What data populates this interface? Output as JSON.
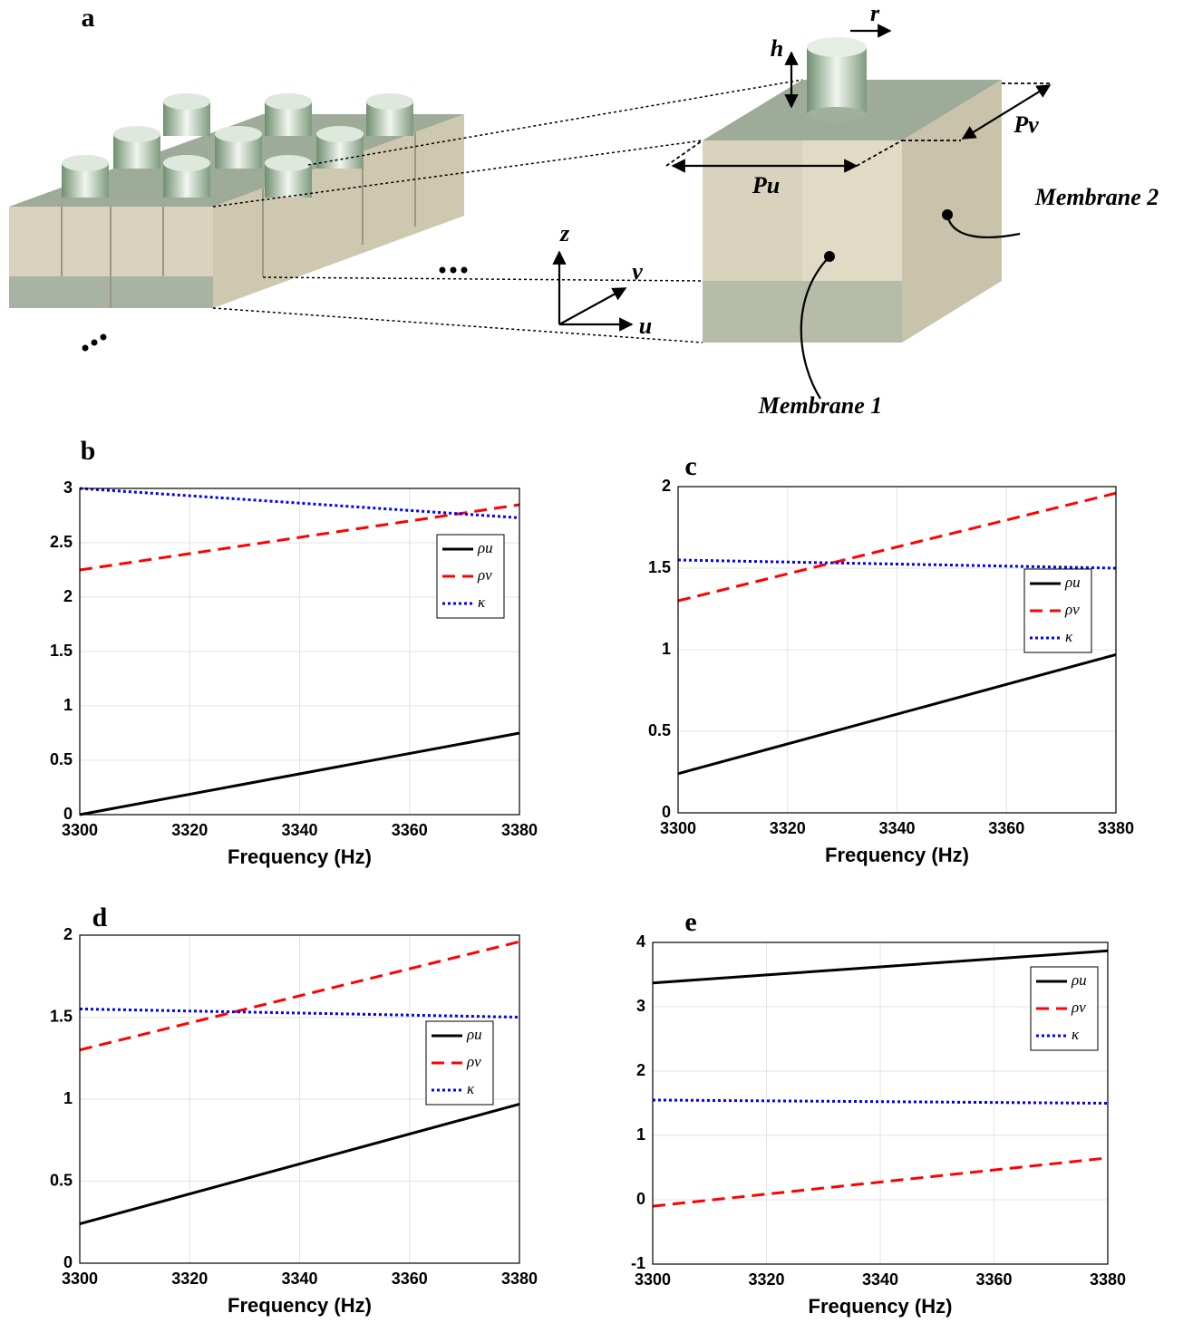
{
  "diagram": {
    "label": "a",
    "r": "r",
    "h": "h",
    "pv": "Pv",
    "pu": "Pu",
    "membrane2": "Membrane 2",
    "membrane1": "Membrane 1",
    "z": "z",
    "v": "v",
    "u": "u"
  },
  "chart_data": [
    {
      "type": "line",
      "label": "b",
      "xlabel": "Frequency (Hz)",
      "x": [
        3300,
        3380
      ],
      "xlim": [
        3300,
        3380
      ],
      "xticks": [
        3300,
        3320,
        3340,
        3360,
        3380
      ],
      "ylim": [
        0,
        3
      ],
      "yticks": [
        0,
        0.5,
        1,
        1.5,
        2,
        2.5,
        3
      ],
      "grid": true,
      "legend": "upper right",
      "series": [
        {
          "name": "ρu",
          "color": "#000000",
          "linestyle": "solid",
          "values": [
            0,
            0.75
          ]
        },
        {
          "name": "ρv",
          "color": "#ff0000",
          "linestyle": "dashed",
          "values": [
            2.25,
            2.85
          ]
        },
        {
          "name": "κ",
          "color": "#0000ff",
          "linestyle": "dotted",
          "values": [
            3.0,
            2.73
          ]
        }
      ]
    },
    {
      "type": "line",
      "label": "c",
      "xlabel": "Frequency (Hz)",
      "x": [
        3300,
        3380
      ],
      "xlim": [
        3300,
        3380
      ],
      "xticks": [
        3300,
        3320,
        3340,
        3360,
        3380
      ],
      "ylim": [
        0,
        2
      ],
      "yticks": [
        0,
        0.5,
        1,
        1.5,
        2
      ],
      "grid": true,
      "legend": "right",
      "series": [
        {
          "name": "ρu",
          "color": "#000000",
          "linestyle": "solid",
          "values": [
            0.24,
            0.97
          ]
        },
        {
          "name": "ρv",
          "color": "#ff0000",
          "linestyle": "dashed",
          "values": [
            1.3,
            1.96
          ]
        },
        {
          "name": "κ",
          "color": "#0000ff",
          "linestyle": "dotted",
          "values": [
            1.55,
            1.5
          ]
        }
      ]
    },
    {
      "type": "line",
      "label": "d",
      "xlabel": "Frequency (Hz)",
      "x": [
        3300,
        3380
      ],
      "xlim": [
        3300,
        3380
      ],
      "xticks": [
        3300,
        3320,
        3340,
        3360,
        3380
      ],
      "ylim": [
        0,
        2
      ],
      "yticks": [
        0,
        0.5,
        1,
        1.5,
        2
      ],
      "grid": true,
      "legend": "right",
      "series": [
        {
          "name": "ρu",
          "color": "#000000",
          "linestyle": "solid",
          "values": [
            0.24,
            0.97
          ]
        },
        {
          "name": "ρv",
          "color": "#ff0000",
          "linestyle": "dashed",
          "values": [
            1.3,
            1.96
          ]
        },
        {
          "name": "κ",
          "color": "#0000ff",
          "linestyle": "dotted",
          "values": [
            1.55,
            1.5
          ]
        }
      ]
    },
    {
      "type": "line",
      "label": "e",
      "xlabel": "Frequency (Hz)",
      "x": [
        3300,
        3380
      ],
      "xlim": [
        3300,
        3380
      ],
      "xticks": [
        3300,
        3320,
        3340,
        3360,
        3380
      ],
      "ylim": [
        -1,
        4
      ],
      "yticks": [
        -1,
        0,
        1,
        2,
        3,
        4
      ],
      "grid": true,
      "legend": "upper right",
      "series": [
        {
          "name": "ρu",
          "color": "#000000",
          "linestyle": "solid",
          "values": [
            3.37,
            3.87
          ]
        },
        {
          "name": "ρv",
          "color": "#ff0000",
          "linestyle": "dashed",
          "values": [
            -0.1,
            0.65
          ]
        },
        {
          "name": "κ",
          "color": "#0000ff",
          "linestyle": "dotted",
          "values": [
            1.55,
            1.5
          ]
        }
      ]
    }
  ]
}
